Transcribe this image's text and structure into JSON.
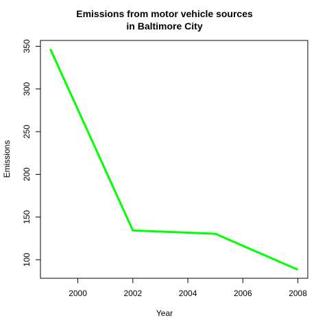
{
  "chart_data": {
    "type": "line",
    "title_lines": [
      "Emissions from motor vehicle sources",
      "in Baltimore City"
    ],
    "xlabel": "Year",
    "ylabel": "Emissions",
    "x": [
      1999,
      2002,
      2005,
      2008
    ],
    "series": [
      {
        "values": [
          346.8,
          134.3,
          130.4,
          88.3
        ],
        "color": "#00ff00"
      }
    ],
    "x_ticks": [
      2000,
      2002,
      2004,
      2006,
      2008
    ],
    "y_ticks": [
      100,
      150,
      200,
      250,
      300,
      350
    ],
    "xlim": [
      1998.64,
      2008.36
    ],
    "ylim": [
      78.3,
      356.8
    ],
    "grid": false
  }
}
